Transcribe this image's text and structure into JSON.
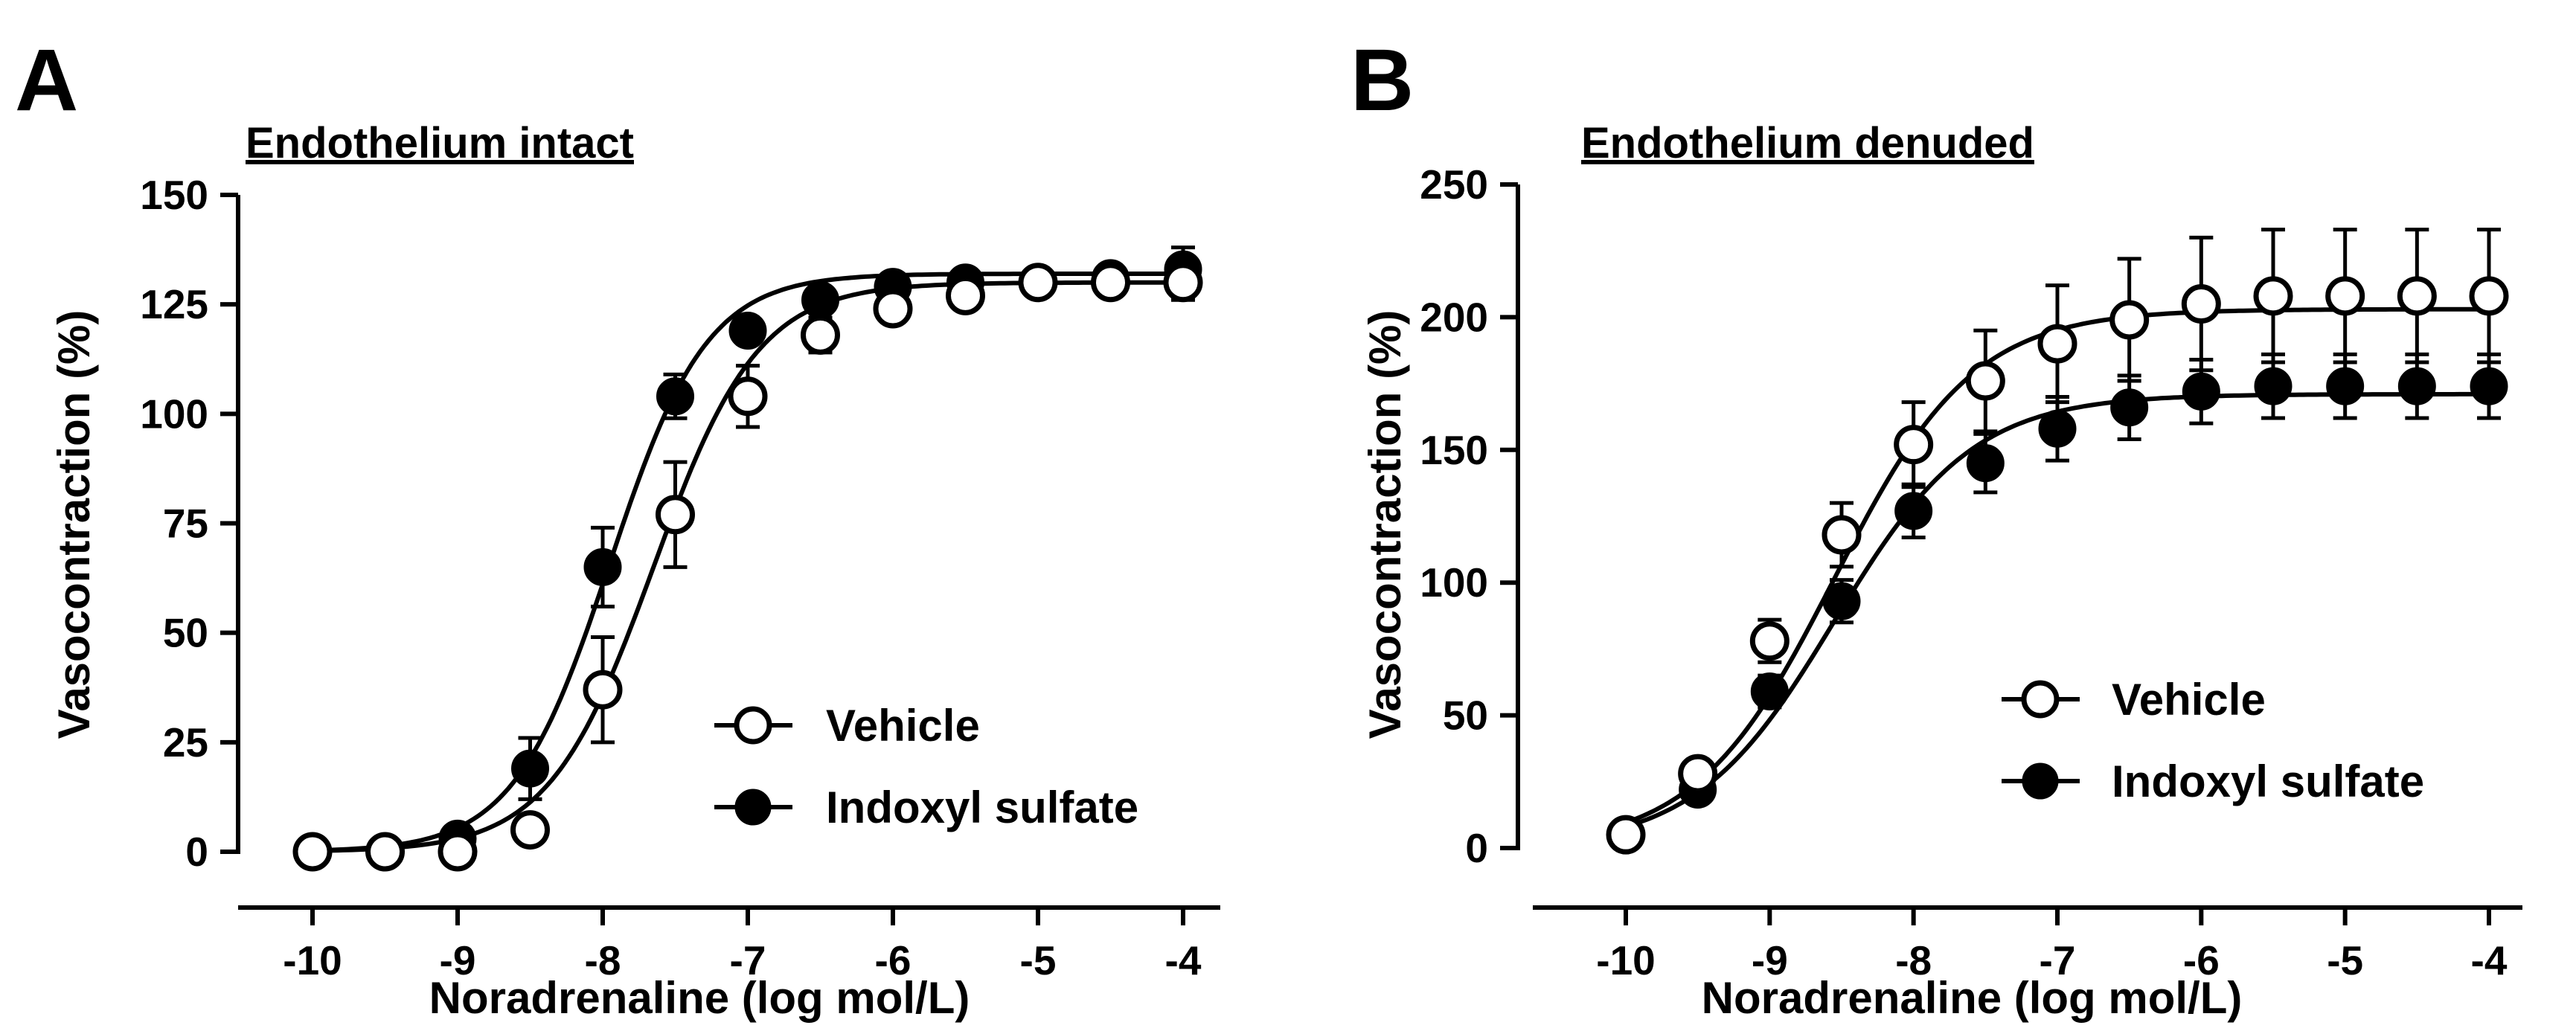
{
  "chart_data": [
    {
      "panel_label": "A",
      "type": "scatter",
      "title": "Endothelium intact",
      "xlabel": "Noradrenaline (log mol/L)",
      "ylabel": "Vasocontraction (%)",
      "xlim": [
        -10.5,
        -3.7
      ],
      "ylim": [
        -5,
        150
      ],
      "xticks": [
        -10,
        -9,
        -8,
        -7,
        -6,
        -5,
        -4
      ],
      "xtick_labels": [
        "-10",
        "-9",
        "-8",
        "-7",
        "-6",
        "-5",
        "-4"
      ],
      "yticks": [
        0,
        25,
        50,
        75,
        100,
        125,
        150
      ],
      "ytick_labels": [
        "0",
        "25",
        "50",
        "75",
        "100",
        "125",
        "150"
      ],
      "legend_position": "center-right",
      "series": [
        {
          "name": "Vehicle",
          "marker": "open",
          "x": [
            -10,
            -9.5,
            -9,
            -8.5,
            -8,
            -7.5,
            -7,
            -6.5,
            -6,
            -5.5,
            -5,
            -4.5,
            -4
          ],
          "y": [
            0,
            0,
            0,
            5,
            37,
            77,
            104,
            118,
            124,
            127,
            130,
            130,
            130
          ],
          "err": [
            0,
            0,
            1,
            3,
            12,
            12,
            7,
            4,
            3,
            3,
            3,
            3,
            4
          ],
          "fit": {
            "bottom": 0,
            "top": 130,
            "logEC50": -7.65,
            "hill": 1.2
          }
        },
        {
          "name": "Indoxyl sulfate",
          "marker": "filled",
          "x": [
            -10,
            -9.5,
            -9,
            -8.5,
            -8,
            -7.5,
            -7,
            -6.5,
            -6,
            -5.5,
            -5,
            -4.5,
            -4
          ],
          "y": [
            0,
            0,
            3,
            19,
            65,
            104,
            119,
            126,
            129,
            130,
            130,
            131,
            133
          ],
          "err": [
            0,
            0,
            2,
            7,
            9,
            5,
            3,
            2,
            2,
            2,
            2,
            3,
            5
          ],
          "fit": {
            "bottom": 0,
            "top": 132,
            "logEC50": -7.95,
            "hill": 1.3
          }
        }
      ]
    },
    {
      "panel_label": "B",
      "type": "scatter",
      "title": "Endothelium denuded",
      "xlabel": "Noradrenaline (log mol/L)",
      "ylabel": "Vasocontraction (%)",
      "xlim": [
        -10.5,
        -3.7
      ],
      "ylim": [
        -5,
        250
      ],
      "xticks": [
        -10,
        -9,
        -8,
        -7,
        -6,
        -5,
        -4
      ],
      "xtick_labels": [
        "-10",
        "-9",
        "-8",
        "-7",
        "-6",
        "-5",
        "-4"
      ],
      "yticks": [
        0,
        50,
        100,
        150,
        200,
        250
      ],
      "ytick_labels": [
        "0",
        "50",
        "100",
        "150",
        "200",
        "250"
      ],
      "legend_position": "center-right",
      "series": [
        {
          "name": "Vehicle",
          "marker": "open",
          "x": [
            -10,
            -9.5,
            -9,
            -8.5,
            -8,
            -7.5,
            -7,
            -6.5,
            -6,
            -5.5,
            -5,
            -4.5,
            -4
          ],
          "y": [
            5,
            28,
            78,
            118,
            152,
            176,
            190,
            199,
            205,
            208,
            208,
            208,
            208
          ],
          "err": [
            2,
            4,
            8,
            12,
            16,
            19,
            22,
            23,
            25,
            25,
            25,
            25,
            25
          ],
          "fit": {
            "bottom": 0,
            "top": 203,
            "logEC50": -8.55,
            "hill": 0.9
          }
        },
        {
          "name": "Indoxyl sulfate",
          "marker": "filled",
          "x": [
            -10,
            -9.5,
            -9,
            -8.5,
            -8,
            -7.5,
            -7,
            -6.5,
            -6,
            -5.5,
            -5,
            -4.5,
            -4
          ],
          "y": [
            5,
            22,
            59,
            93,
            127,
            145,
            158,
            166,
            172,
            174,
            174,
            174,
            174
          ],
          "err": [
            2,
            3,
            6,
            8,
            10,
            11,
            12,
            12,
            12,
            12,
            12,
            12,
            12
          ],
          "fit": {
            "bottom": 0,
            "top": 171,
            "logEC50": -8.55,
            "hill": 0.9
          }
        }
      ]
    }
  ]
}
